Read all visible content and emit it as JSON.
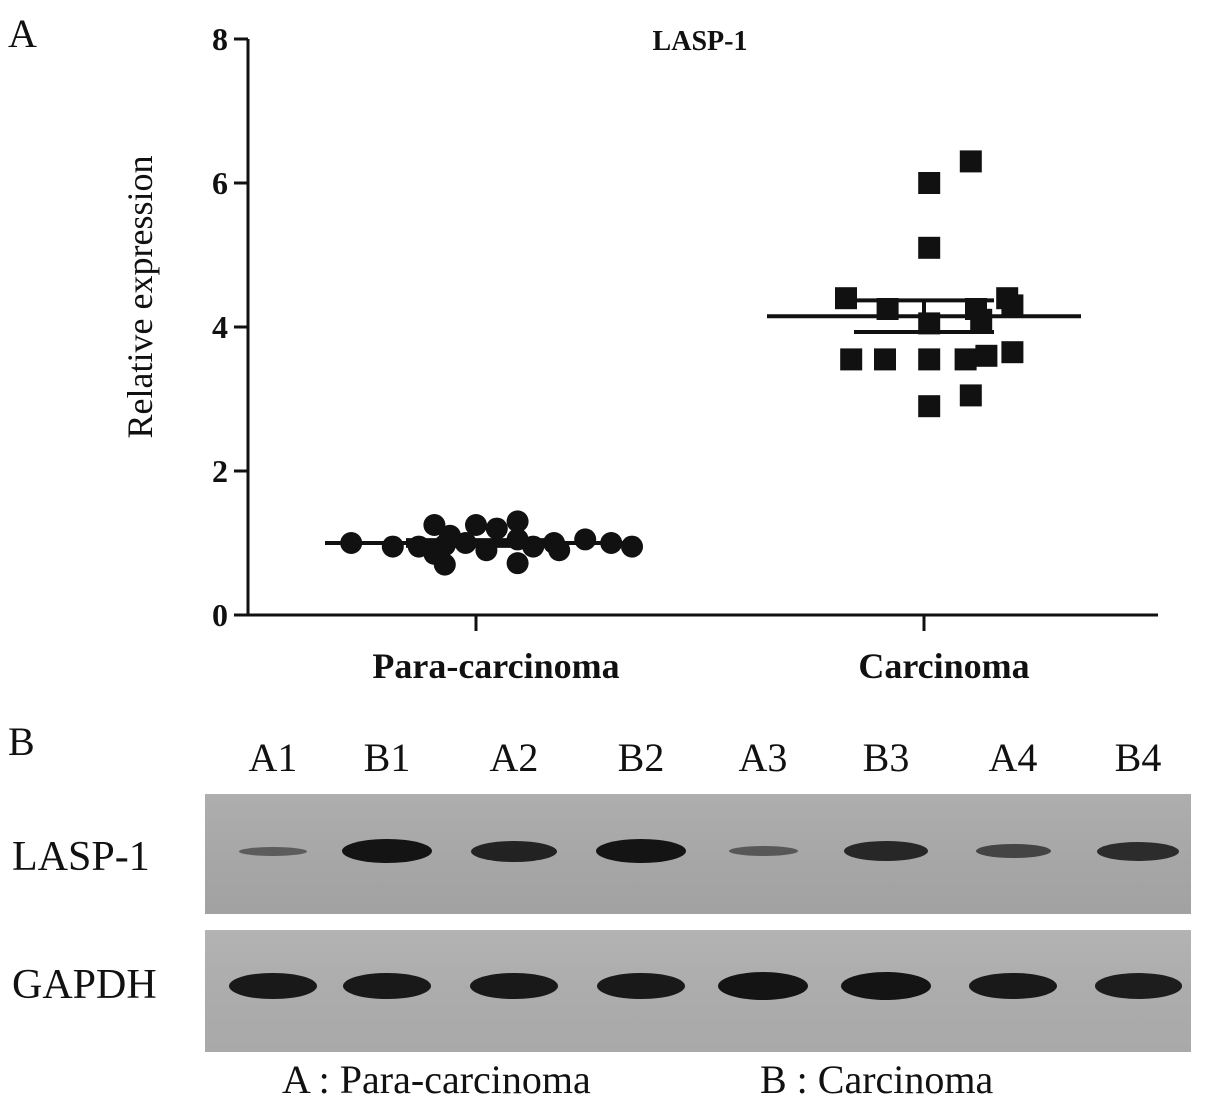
{
  "panel_a": {
    "letter": "A"
  },
  "panel_b": {
    "letter": "B",
    "lanes": [
      "A1",
      "B1",
      "A2",
      "B2",
      "A3",
      "B3",
      "A4",
      "B4"
    ],
    "rows": [
      {
        "label": "LASP-1",
        "band_intensity": [
          0.25,
          1.0,
          0.85,
          1.0,
          0.3,
          0.8,
          0.5,
          0.75
        ]
      },
      {
        "label": "GAPDH",
        "band_intensity": [
          0.95,
          0.95,
          0.95,
          0.95,
          1.0,
          1.0,
          0.95,
          0.9
        ]
      }
    ],
    "legend": {
      "a": "A : Para-carcinoma",
      "b": "B : Carcinoma"
    }
  },
  "chart_data": {
    "type": "scatter",
    "title": "LASP-1",
    "xlabel": "",
    "ylabel": "Relative expression",
    "categories": [
      "Para-carcinoma",
      "Carcinoma"
    ],
    "ylim": [
      0,
      8
    ],
    "yticks": [
      0,
      2,
      4,
      6,
      8
    ],
    "grid": false,
    "series": [
      {
        "category": "Para-carcinoma",
        "marker": "circle",
        "values": [
          1.0,
          0.95,
          0.95,
          0.97,
          1.25,
          1.1,
          0.85,
          0.7,
          1.0,
          1.25,
          1.2,
          0.9,
          1.05,
          1.3,
          0.95,
          0.72,
          1.0,
          0.9,
          1.05,
          1.0,
          0.95
        ],
        "jitter": [
          -0.48,
          -0.32,
          -0.22,
          -0.12,
          -0.16,
          -0.1,
          -0.16,
          -0.12,
          -0.04,
          0.0,
          0.08,
          0.04,
          0.16,
          0.16,
          0.22,
          0.16,
          0.3,
          0.32,
          0.42,
          0.52,
          0.6
        ],
        "mean": 1.0,
        "error": 0.04
      },
      {
        "category": "Carcinoma",
        "marker": "square",
        "values": [
          6.3,
          6.0,
          5.1,
          4.4,
          4.25,
          4.05,
          4.4,
          4.25,
          4.3,
          4.1,
          3.55,
          3.55,
          3.55,
          3.55,
          3.6,
          3.65,
          3.05,
          2.9
        ],
        "jitter": [
          0.18,
          0.02,
          0.02,
          -0.3,
          -0.14,
          0.02,
          0.32,
          0.2,
          0.34,
          0.22,
          -0.28,
          -0.15,
          0.02,
          0.16,
          0.24,
          0.34,
          0.18,
          0.02
        ],
        "mean": 4.15,
        "error": 0.22
      }
    ]
  }
}
